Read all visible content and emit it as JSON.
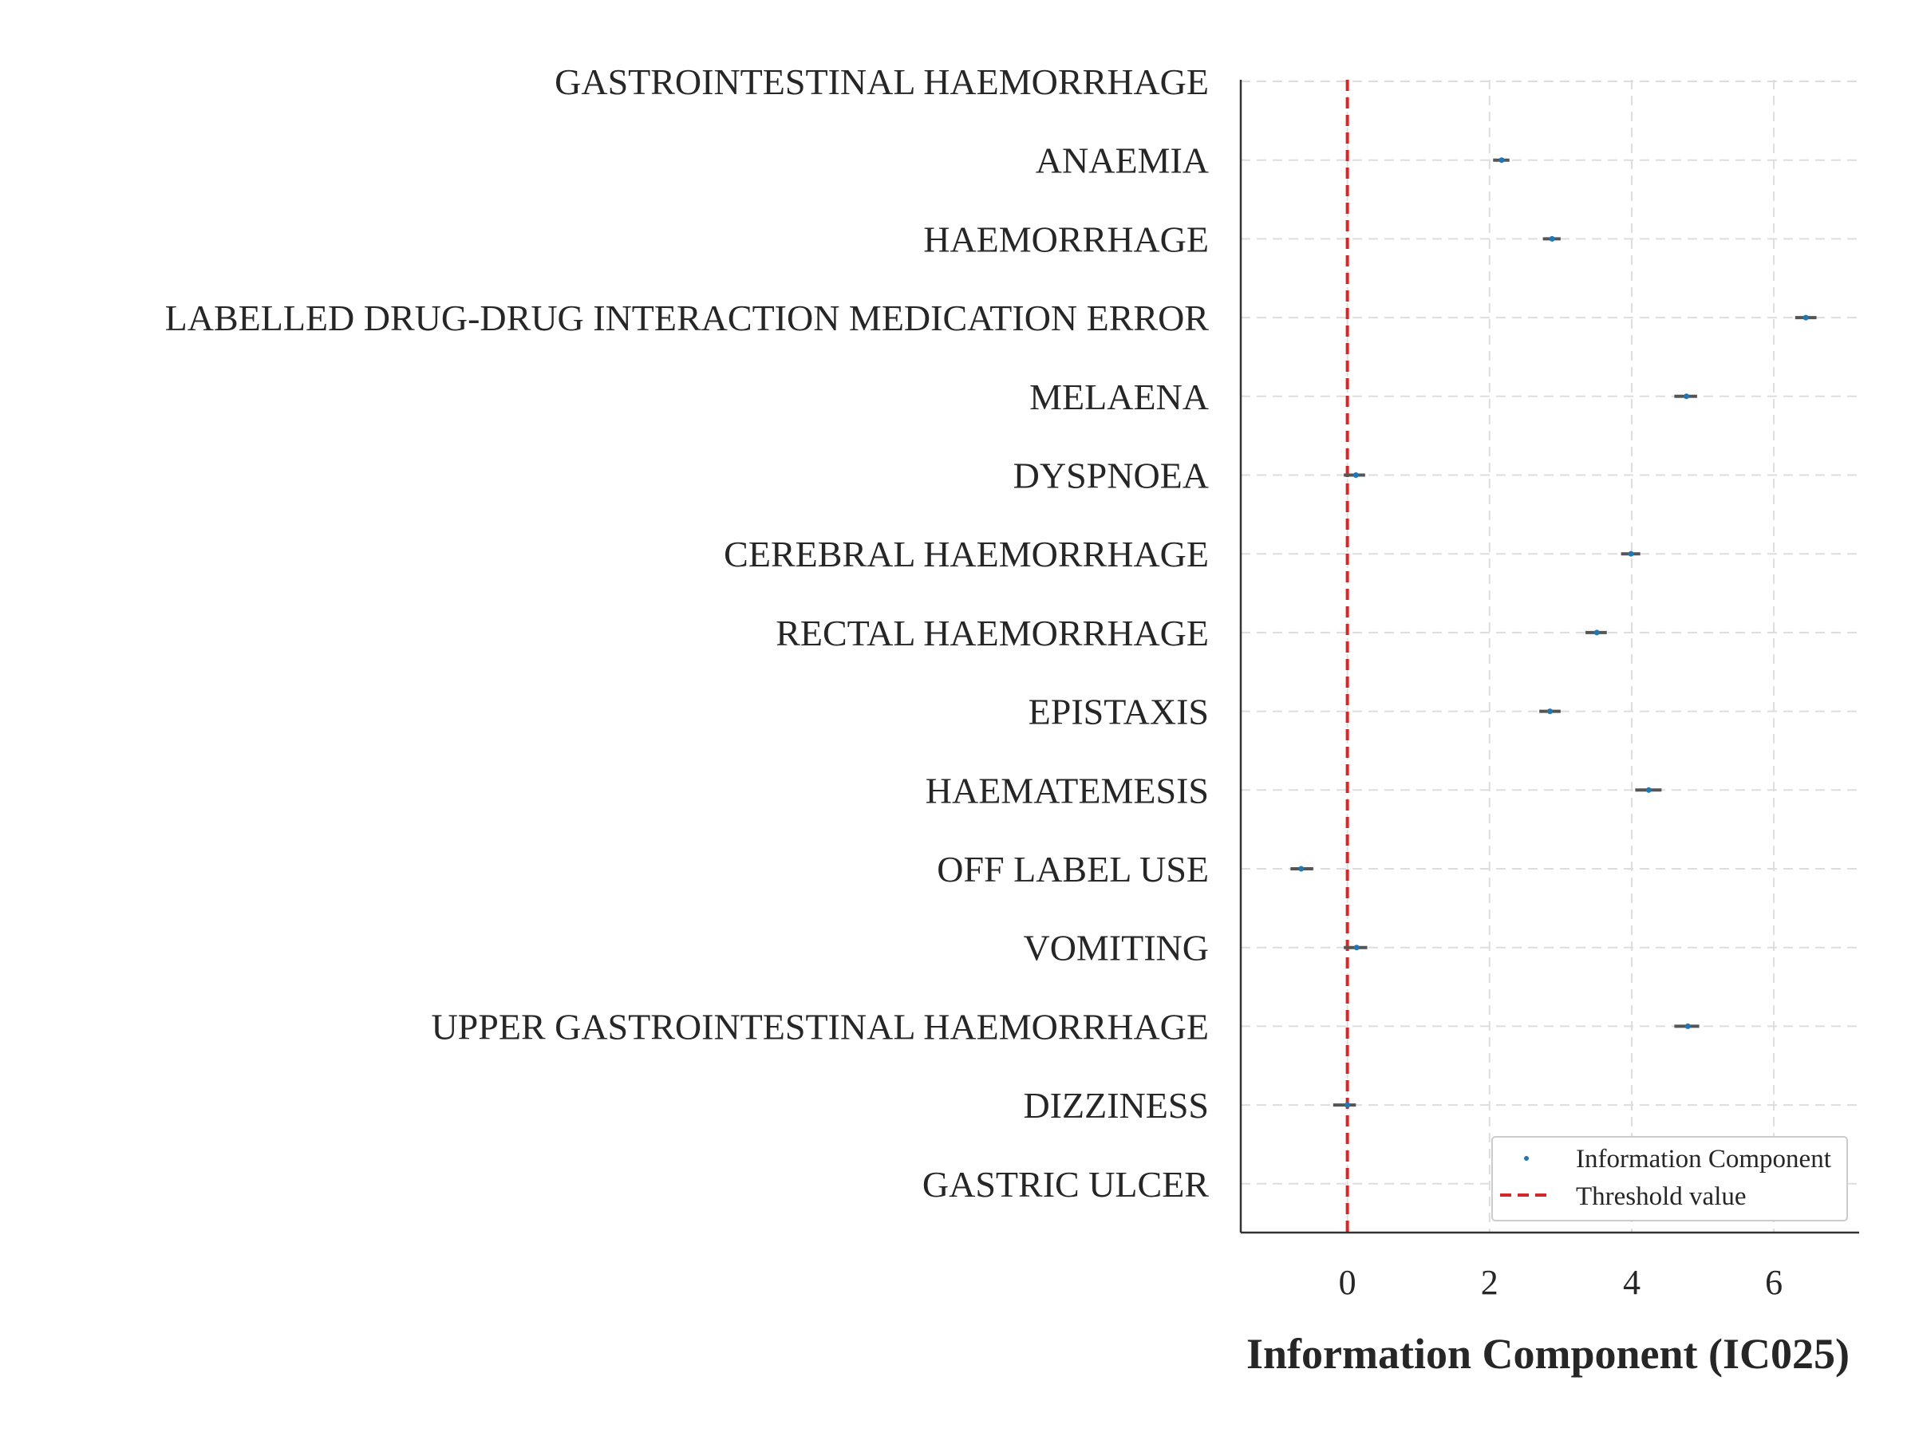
{
  "chart_data": {
    "type": "scatter",
    "orientation": "horizontal",
    "xlabel": "Information Component (IC025)",
    "ylabel": "",
    "title": "",
    "xlim": [
      -1.5,
      7.2
    ],
    "xticks": [
      0,
      2,
      4,
      6
    ],
    "grid": true,
    "legend_position": "lower-right",
    "categories": [
      "GASTROINTESTINAL HAEMORRHAGE",
      "ANAEMIA",
      "HAEMORRHAGE",
      "LABELLED DRUG-DRUG INTERACTION MEDICATION ERROR",
      "MELAENA",
      "DYSPNOEA",
      "CEREBRAL HAEMORRHAGE",
      "RECTAL HAEMORRHAGE",
      "EPISTAXIS",
      "HAEMATEMESIS",
      "OFF LABEL USE",
      "VOMITING",
      "UPPER GASTROINTESTINAL HAEMORRHAGE",
      "DIZZINESS",
      "GASTRIC ULCER"
    ],
    "series": [
      {
        "name": "Information Component",
        "color": "#1f77b4",
        "values": [
          null,
          2.17,
          2.88,
          6.45,
          4.77,
          0.12,
          3.99,
          3.51,
          2.85,
          4.24,
          -0.65,
          0.13,
          4.79,
          0.0,
          null
        ],
        "lower": [
          null,
          2.05,
          2.75,
          6.3,
          4.6,
          -0.05,
          3.85,
          3.35,
          2.7,
          4.05,
          -0.8,
          -0.05,
          4.6,
          -0.2,
          null
        ],
        "upper": [
          null,
          2.28,
          3.0,
          6.6,
          4.92,
          0.25,
          4.12,
          3.65,
          3.0,
          4.42,
          -0.48,
          0.28,
          4.95,
          0.12,
          null
        ]
      }
    ],
    "threshold": {
      "name": "Threshold value",
      "value": 0,
      "color": "#d62728"
    },
    "colors": {
      "interval": "#555555",
      "grid": "#dddddd",
      "axis": "#333333"
    }
  }
}
